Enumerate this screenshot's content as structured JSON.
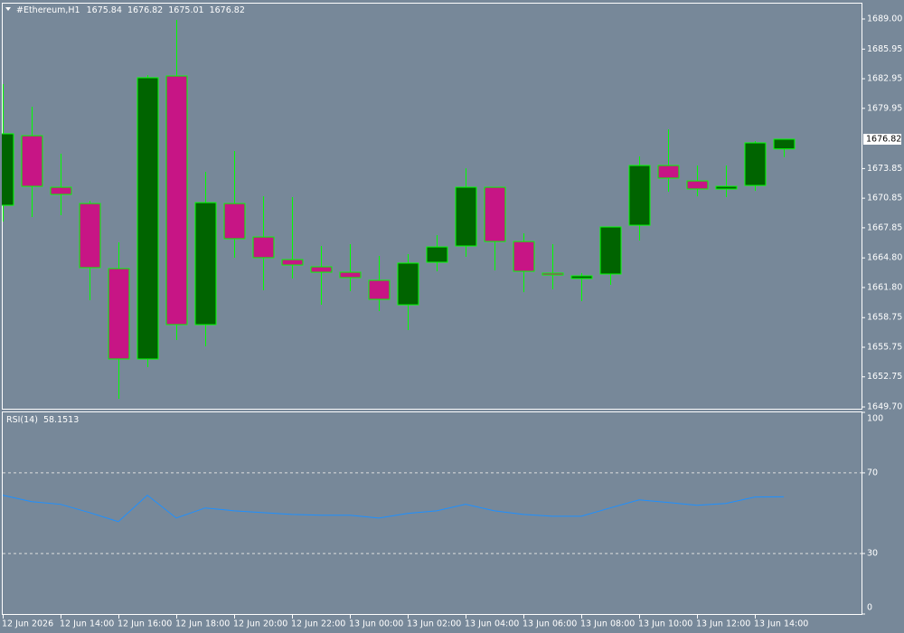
{
  "chart_data": [
    {
      "type": "candlestick",
      "title": "#Ethereum,H1",
      "categories": [
        "12 Jun 2026",
        null,
        "12 Jun 14:00",
        null,
        "12 Jun 16:00",
        null,
        "12 Jun 18:00",
        null,
        "12 Jun 20:00",
        null,
        "12 Jun 22:00",
        null,
        "13 Jun 00:00",
        null,
        "13 Jun 02:00",
        null,
        "13 Jun 04:00",
        null,
        "13 Jun 06:00",
        null,
        "13 Jun 08:00",
        null,
        "13 Jun 10:00",
        null,
        "13 Jun 12:00",
        null,
        "13 Jun 14:00",
        null
      ],
      "open": [
        1670.13,
        1677.18,
        1671.96,
        1670.31,
        1663.72,
        1654.56,
        1683.23,
        1658.04,
        1670.31,
        1666.92,
        1664.63,
        1663.9,
        1663.35,
        1662.53,
        1660.05,
        1664.36,
        1666.01,
        1671.96,
        1666.46,
        1663.26,
        1662.71,
        1663.17,
        1668.11,
        1674.16,
        1672.6,
        1671.78,
        1672.14,
        1675.84
      ],
      "high": [
        1682.4,
        1680.11,
        1675.35,
        1670.59,
        1666.37,
        1683.32,
        1688.91,
        1673.52,
        1675.63,
        1671.04,
        1670.95,
        1666.01,
        1666.19,
        1665.0,
        1665.18,
        1667.11,
        1673.88,
        1671.96,
        1667.29,
        1666.19,
        1663.26,
        1667.93,
        1675.08,
        1677.82,
        1674.16,
        1674.16,
        1676.63,
        1676.82
      ],
      "low": [
        1668.48,
        1668.94,
        1669.12,
        1660.51,
        1650.52,
        1653.73,
        1656.48,
        1655.84,
        1664.82,
        1661.52,
        1662.71,
        1660.05,
        1661.43,
        1659.41,
        1657.49,
        1663.44,
        1664.91,
        1663.53,
        1661.33,
        1661.61,
        1660.42,
        1662.07,
        1666.56,
        1671.5,
        1671.04,
        1670.95,
        1671.59,
        1675.01
      ],
      "close": [
        1677.37,
        1672.05,
        1671.23,
        1663.81,
        1654.56,
        1683.05,
        1658.04,
        1670.4,
        1666.74,
        1664.82,
        1664.08,
        1663.35,
        1662.8,
        1660.6,
        1664.27,
        1665.91,
        1671.96,
        1666.46,
        1663.44,
        1663.07,
        1662.98,
        1667.93,
        1674.16,
        1672.88,
        1671.78,
        1672.05,
        1676.45,
        1676.82
      ],
      "up_color": "#006400",
      "down_color": "#c71585",
      "wick_color": "#00ff00",
      "ylim": [
        1649.52,
        1690.65
      ],
      "yticks": [
        {
          "value": 1689.0,
          "label": "1689.00"
        },
        {
          "value": 1685.95,
          "label": "1685.95"
        },
        {
          "value": 1682.95,
          "label": "1682.95"
        },
        {
          "value": 1679.95,
          "label": "1679.95"
        },
        {
          "value": 1673.85,
          "label": "1673.85"
        },
        {
          "value": 1670.85,
          "label": "1670.85"
        },
        {
          "value": 1667.85,
          "label": "1667.85"
        },
        {
          "value": 1664.8,
          "label": "1664.80"
        },
        {
          "value": 1661.8,
          "label": "1661.80"
        },
        {
          "value": 1658.75,
          "label": "1658.75"
        },
        {
          "value": 1655.75,
          "label": "1655.75"
        },
        {
          "value": 1652.75,
          "label": "1652.75"
        },
        {
          "value": 1649.7,
          "label": "1649.70"
        }
      ]
    },
    {
      "type": "line",
      "title": "RSI(14)",
      "values": [
        58.9,
        55.7,
        54.4,
        50.3,
        45.8,
        58.9,
        47.6,
        52.6,
        51.2,
        50.3,
        49.4,
        49.0,
        49.0,
        47.6,
        49.9,
        51.2,
        54.4,
        51.2,
        49.4,
        48.5,
        48.5,
        52.6,
        56.6,
        55.3,
        53.9,
        54.8,
        58.0,
        58.1513
      ],
      "color": "#1e90ff",
      "ylim": [
        0,
        100
      ],
      "yticks": [
        100,
        70,
        30,
        0
      ],
      "levels": [
        70,
        30
      ]
    }
  ]
}
